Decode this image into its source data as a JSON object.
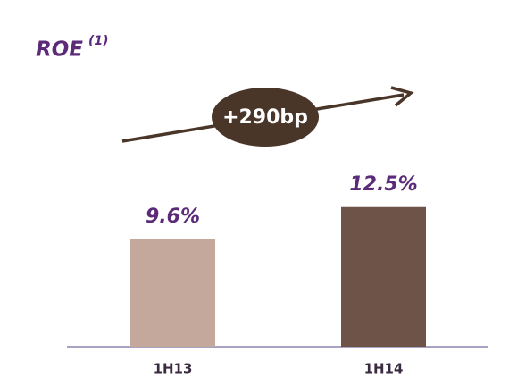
{
  "chart_data": {
    "type": "bar",
    "title": "ROE",
    "title_superscript": "(1)",
    "categories": [
      "1H13",
      "1H14"
    ],
    "values": [
      9.6,
      12.5
    ],
    "value_labels": [
      "9.6%",
      "12.5%"
    ],
    "colors": [
      "#c4a89c",
      "#6e5348"
    ],
    "annotation": "+290bp"
  }
}
